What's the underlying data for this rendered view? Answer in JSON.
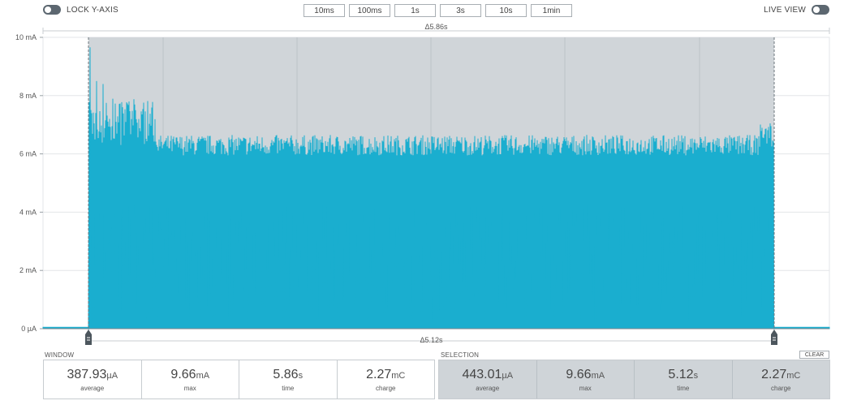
{
  "controls": {
    "lock_y_axis": "LOCK Y-AXIS",
    "live_view": "LIVE VIEW",
    "zoom_options": [
      "10ms",
      "100ms",
      "1s",
      "3s",
      "10s",
      "1min"
    ]
  },
  "chart_data": {
    "type": "area",
    "ylabel": "",
    "ytick_labels": [
      "10 mA",
      "8 mA",
      "6 mA",
      "4 mA",
      "2 mA",
      "0 µA"
    ],
    "ylim_mA": [
      0,
      10
    ],
    "window_span_s": 5.86,
    "selection_span_s": 5.12,
    "window_delta_label": "Δ5.86s",
    "selection_delta_label": "Δ5.12s",
    "series": [
      {
        "name": "",
        "baseline_mA": 0.05,
        "pulse_peak_mA_typical": 6.3,
        "pulse_peak_mA_max": 9.66,
        "early_peaks_mA": [
          9.66,
          8.5,
          8.4,
          7.2,
          7.1,
          7.6,
          7.8,
          7.5
        ]
      }
    ],
    "grid": true,
    "color": "#1aaecf",
    "selection_shade": "#d0d5d9"
  },
  "window": {
    "header": "WINDOW",
    "stats": [
      {
        "value": "387.93",
        "unit": "µA",
        "label": "average"
      },
      {
        "value": "9.66",
        "unit": "mA",
        "label": "max"
      },
      {
        "value": "5.86",
        "unit": "s",
        "label": "time"
      },
      {
        "value": "2.27",
        "unit": "mC",
        "label": "charge"
      }
    ]
  },
  "selection": {
    "header": "SELECTION",
    "clear_label": "CLEAR",
    "stats": [
      {
        "value": "443.01",
        "unit": "µA",
        "label": "average"
      },
      {
        "value": "9.66",
        "unit": "mA",
        "label": "max"
      },
      {
        "value": "5.12",
        "unit": "s",
        "label": "time"
      },
      {
        "value": "2.27",
        "unit": "mC",
        "label": "charge"
      }
    ]
  }
}
